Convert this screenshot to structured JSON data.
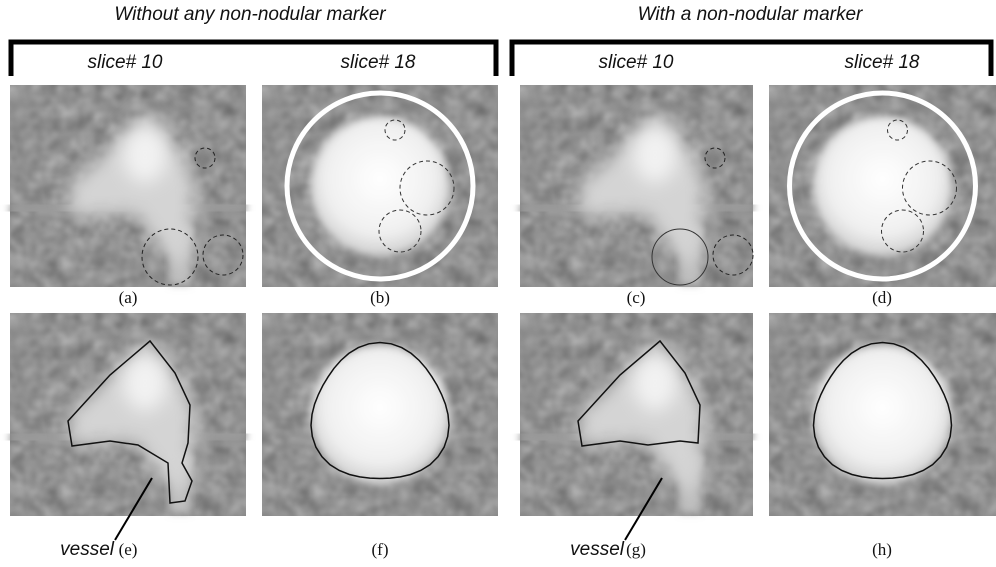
{
  "headings": [
    "Without any non-nodular marker",
    "With a non-nodular marker"
  ],
  "slice_labels": [
    "slice# 10",
    "slice# 18",
    "slice# 10",
    "slice# 18"
  ],
  "panel_labels": [
    "(a)",
    "(b)",
    "(c)",
    "(d)",
    "(e)",
    "(f)",
    "(g)",
    "(h)"
  ],
  "annotations": [
    "vessel",
    "vessel"
  ]
}
